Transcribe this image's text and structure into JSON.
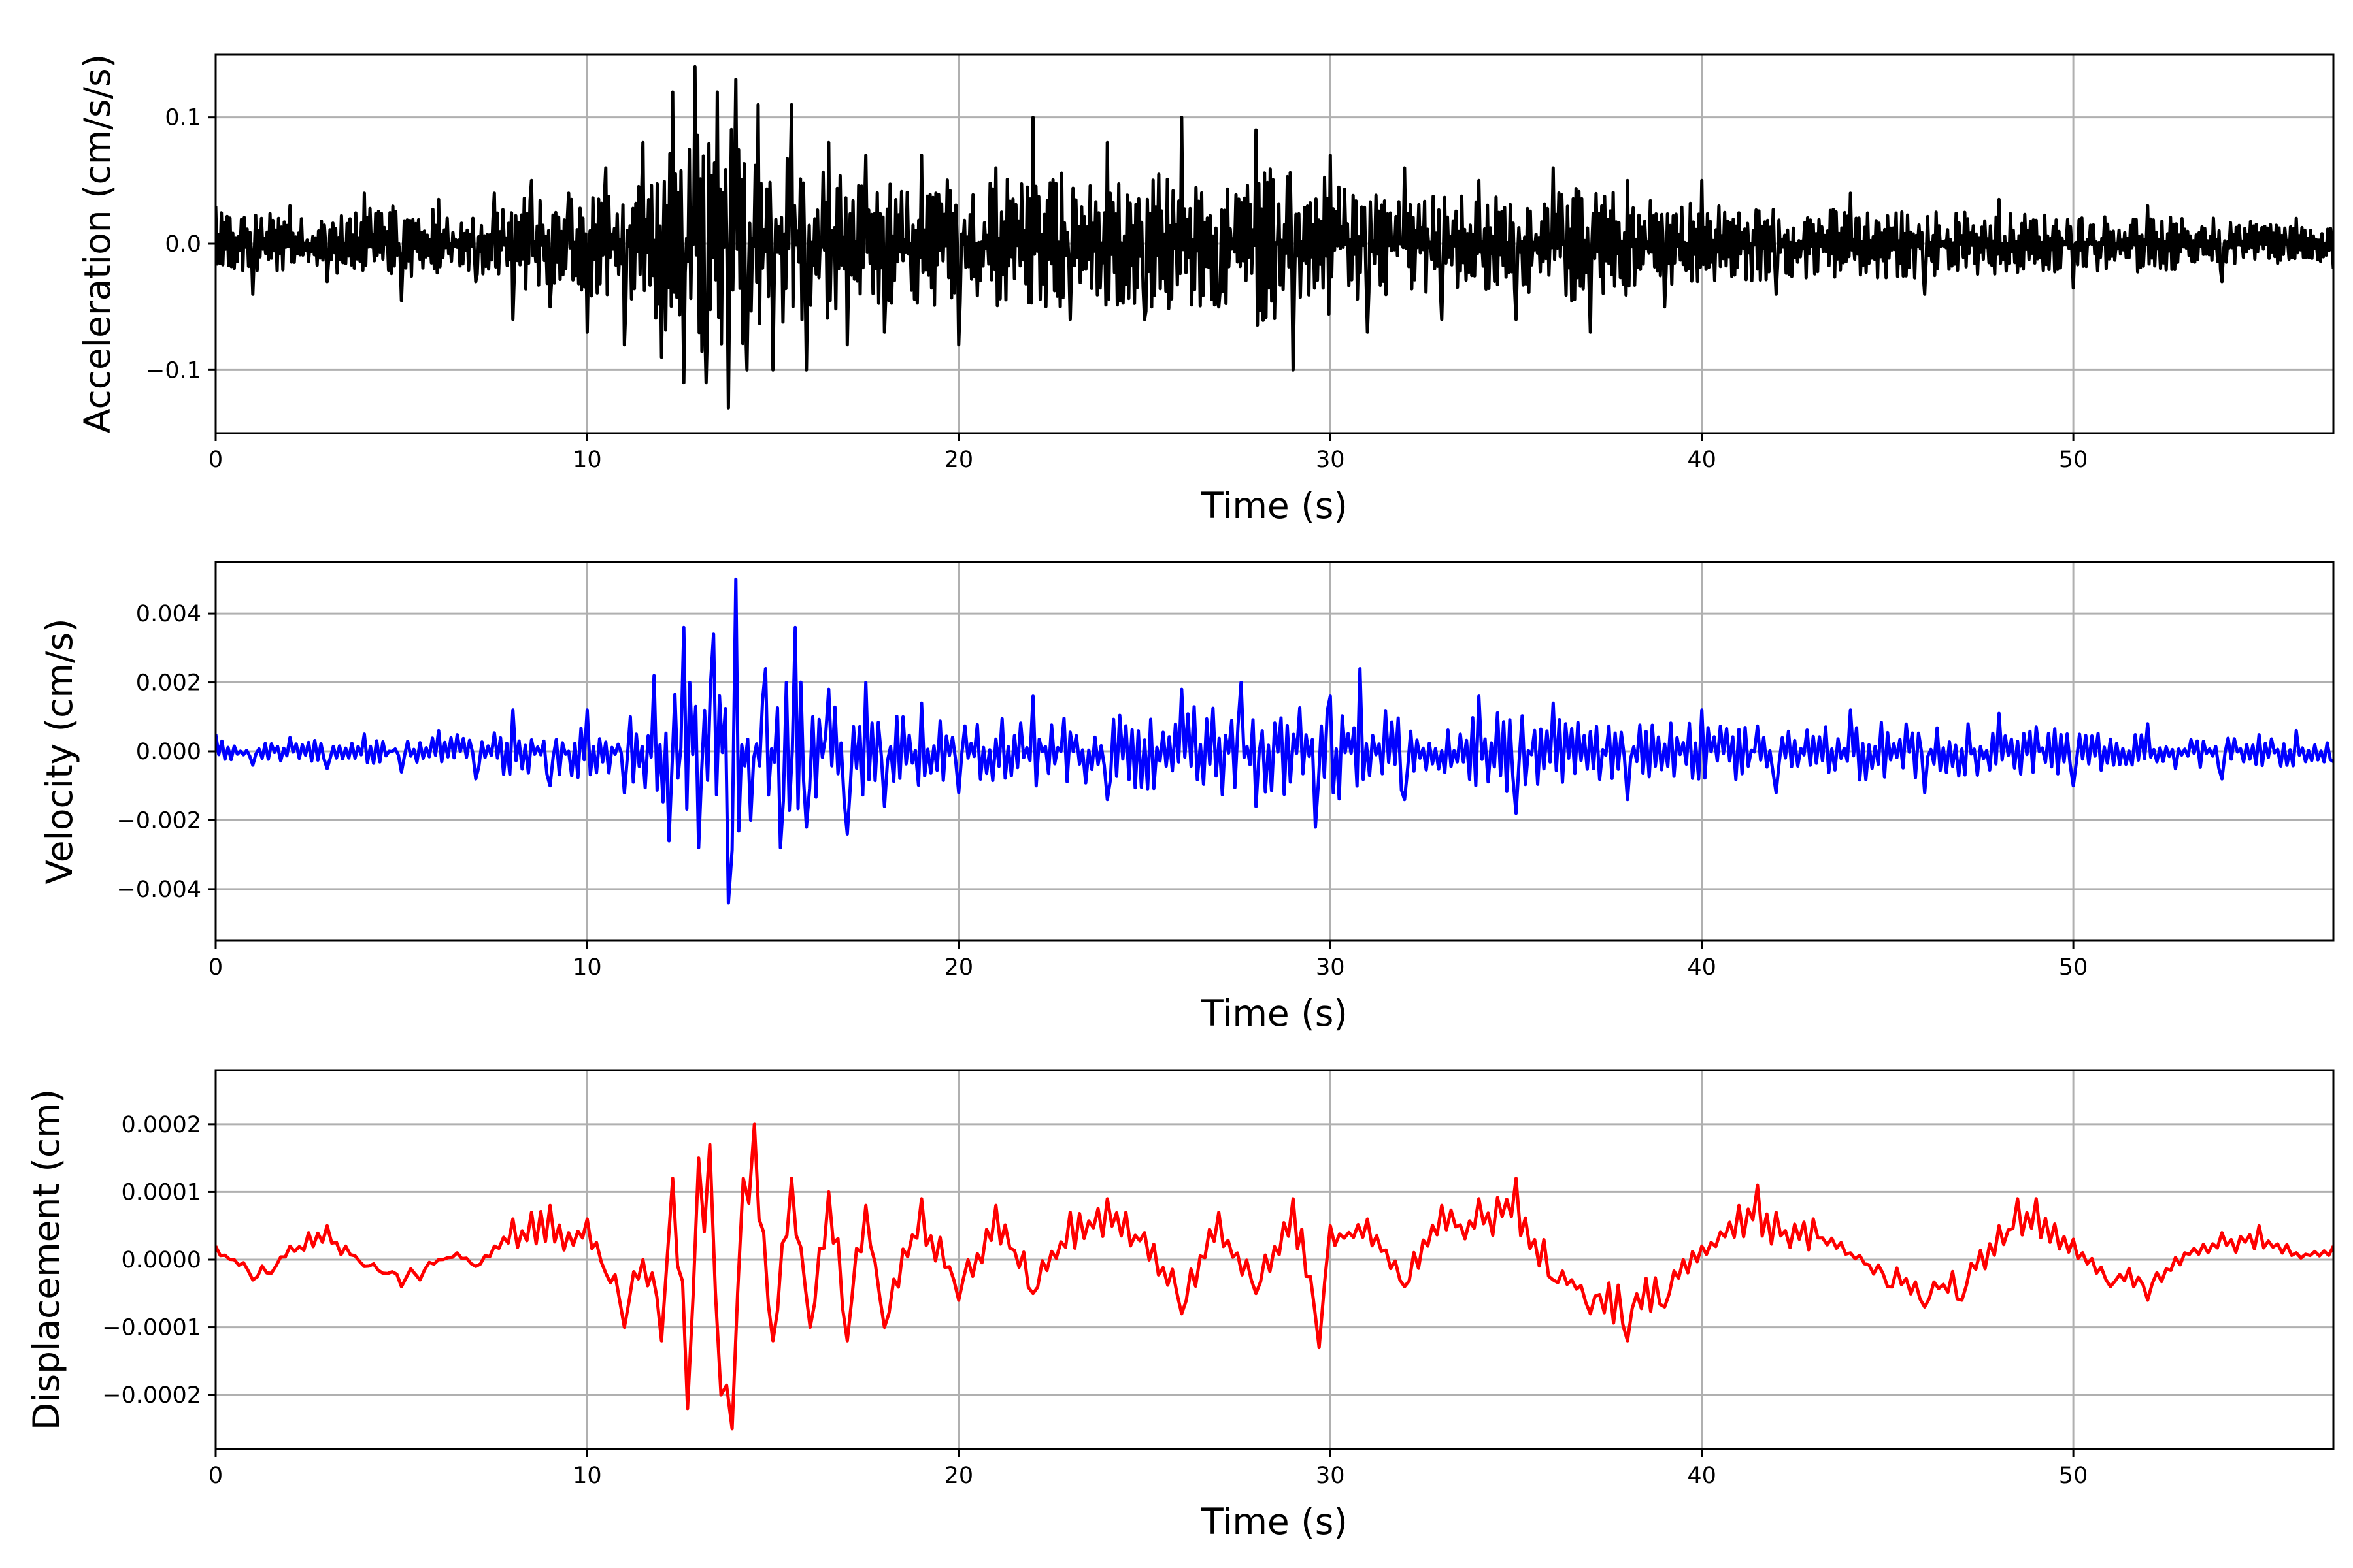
{
  "colors": {
    "acceleration": "#000000",
    "velocity": "#0000ff",
    "displacement": "#ff0000",
    "grid": "#b0b0b0"
  },
  "chart_data": [
    {
      "type": "line",
      "xlabel": "Time (s)",
      "ylabel": "Acceleration (cm/s/s)",
      "xlim": [
        0,
        57
      ],
      "ylim": [
        -0.15,
        0.15
      ],
      "grid": true,
      "xticks": [
        0,
        10,
        20,
        30,
        40,
        50
      ],
      "xtick_labels": [
        "0",
        "10",
        "20",
        "30",
        "40",
        "50"
      ],
      "yticks": [
        -0.1,
        0.0,
        0.1
      ],
      "ytick_labels": [
        "−0.1",
        "0.0",
        "0.1"
      ],
      "series": [
        {
          "color": "#000000",
          "x": [
            0,
            1,
            2,
            3,
            4,
            5,
            6,
            7,
            7.5,
            8,
            8.5,
            9,
            9.5,
            10,
            10.5,
            11,
            11.5,
            12,
            12.3,
            12.6,
            12.9,
            13.2,
            13.5,
            13.8,
            14.0,
            14.3,
            14.6,
            15.0,
            15.5,
            15.9,
            16.5,
            17,
            17.5,
            18,
            19,
            20,
            21,
            22,
            23,
            24,
            25,
            26,
            27,
            28,
            29,
            30,
            31,
            32,
            33,
            34,
            35,
            36,
            37,
            38,
            39,
            40,
            42,
            44,
            46,
            48,
            50,
            52,
            54,
            56,
            57
          ],
          "y": [
            0.03,
            -0.04,
            0.03,
            -0.03,
            0.04,
            -0.045,
            0.035,
            -0.03,
            0.04,
            -0.06,
            0.05,
            -0.05,
            0.04,
            -0.07,
            0.06,
            -0.08,
            0.08,
            -0.09,
            0.12,
            -0.11,
            0.14,
            -0.11,
            0.12,
            -0.13,
            0.13,
            -0.1,
            0.11,
            -0.1,
            0.11,
            -0.1,
            0.08,
            -0.08,
            0.07,
            -0.07,
            0.07,
            -0.08,
            0.06,
            0.1,
            -0.06,
            0.08,
            -0.06,
            0.1,
            -0.05,
            0.09,
            -0.1,
            0.07,
            -0.07,
            0.06,
            -0.06,
            0.05,
            -0.06,
            0.06,
            -0.07,
            0.05,
            -0.05,
            0.05,
            -0.04,
            0.04,
            -0.04,
            0.035,
            -0.035,
            0.03,
            -0.03,
            0.02,
            -0.02
          ]
        }
      ]
    },
    {
      "type": "line",
      "xlabel": "Time (s)",
      "ylabel": "Velocity (cm/s)",
      "xlim": [
        0,
        57
      ],
      "ylim": [
        -0.0055,
        0.0055
      ],
      "grid": true,
      "xticks": [
        0,
        10,
        20,
        30,
        40,
        50
      ],
      "xtick_labels": [
        "0",
        "10",
        "20",
        "30",
        "40",
        "50"
      ],
      "yticks": [
        -0.004,
        -0.002,
        0.0,
        0.002,
        0.004
      ],
      "ytick_labels": [
        "−0.004",
        "−0.002",
        "0.000",
        "0.002",
        "0.004"
      ],
      "series": [
        {
          "color": "#0000ff",
          "x": [
            0,
            1,
            2,
            3,
            4,
            5,
            6,
            7,
            8,
            9,
            10,
            11,
            11.8,
            12.2,
            12.6,
            13.0,
            13.4,
            13.8,
            14.0,
            14.4,
            14.8,
            15.2,
            15.6,
            15.9,
            16.5,
            17,
            17.5,
            18,
            19,
            20,
            22,
            24,
            26,
            27.6,
            28,
            29.6,
            30,
            30.8,
            32,
            34,
            35,
            36,
            38,
            40,
            42,
            44,
            46,
            48,
            50,
            52,
            54,
            56,
            57
          ],
          "y": [
            0.0005,
            -0.0004,
            0.0004,
            -0.0005,
            0.0005,
            -0.0006,
            0.0006,
            -0.0008,
            0.0012,
            -0.001,
            0.0012,
            -0.0012,
            0.0022,
            -0.0026,
            0.0036,
            -0.0028,
            0.0034,
            -0.0044,
            0.005,
            -0.002,
            0.0024,
            -0.0028,
            0.0036,
            -0.0022,
            0.0018,
            -0.0024,
            0.002,
            -0.0016,
            0.0014,
            -0.0012,
            0.0016,
            -0.0014,
            0.0018,
            0.002,
            -0.0016,
            -0.0022,
            0.0016,
            0.0024,
            -0.0014,
            0.0016,
            -0.0018,
            0.0014,
            -0.0014,
            0.0012,
            -0.0012,
            0.0012,
            -0.0012,
            0.0011,
            -0.001,
            0.0008,
            -0.0008,
            0.0006,
            -0.0003
          ]
        }
      ]
    },
    {
      "type": "line",
      "xlabel": "Time (s)",
      "ylabel": "Displacement (cm)",
      "xlim": [
        0,
        57
      ],
      "ylim": [
        -0.00028,
        0.00028
      ],
      "grid": true,
      "xticks": [
        0,
        10,
        20,
        30,
        40,
        50
      ],
      "xtick_labels": [
        "0",
        "10",
        "20",
        "30",
        "40",
        "50"
      ],
      "yticks": [
        -0.0002,
        -0.0001,
        0.0,
        0.0001,
        0.0002
      ],
      "ytick_labels": [
        "−0.0002",
        "−0.0001",
        "0.0000",
        "0.0001",
        "0.0002"
      ],
      "series": [
        {
          "color": "#ff0000",
          "x": [
            0,
            0.5,
            1,
            1.5,
            2,
            2.5,
            3,
            3.5,
            4,
            4.5,
            5,
            5.5,
            6,
            6.5,
            7,
            7.5,
            8,
            8.5,
            9,
            9.5,
            10,
            10.5,
            11,
            11.5,
            12,
            12.3,
            12.7,
            13.0,
            13.3,
            13.6,
            13.9,
            14.2,
            14.5,
            15,
            15.5,
            16,
            16.5,
            17,
            17.5,
            18,
            19,
            20,
            21,
            22,
            23,
            24,
            24.5,
            25,
            26,
            27,
            28,
            29,
            29.7,
            30,
            31,
            32,
            33,
            34,
            35,
            36,
            37,
            38,
            39,
            40,
            41,
            41.5,
            42,
            43,
            44,
            45,
            46,
            47,
            48,
            48.5,
            49,
            50,
            51,
            52,
            53,
            54,
            55,
            56,
            57
          ],
          "y": [
            2e-05,
            0,
            -3e-05,
            -2e-05,
            2e-05,
            4e-05,
            5e-05,
            2e-05,
            -1e-05,
            -2e-05,
            -4e-05,
            -3e-05,
            0,
            1e-05,
            -1e-05,
            2e-05,
            6e-05,
            7e-05,
            8e-05,
            4e-05,
            6e-05,
            -2e-05,
            -0.0001,
            0,
            -0.00012,
            0.00012,
            -0.00022,
            0.00015,
            0.00017,
            -0.0002,
            -0.00025,
            0.00012,
            0.0002,
            -0.00012,
            0.00012,
            -0.0001,
            0.0001,
            -0.00012,
            8e-05,
            -0.0001,
            9e-05,
            -6e-05,
            8e-05,
            -5e-05,
            7e-05,
            9e-05,
            7e-05,
            4e-05,
            -8e-05,
            7e-05,
            -5e-05,
            9e-05,
            -0.00013,
            5e-05,
            6e-05,
            -4e-05,
            8e-05,
            9e-05,
            0.00012,
            -3e-05,
            -8e-05,
            -0.00012,
            -7e-05,
            2e-05,
            8e-05,
            0.00011,
            7e-05,
            6e-05,
            1e-05,
            -4e-05,
            -7e-05,
            -6e-05,
            5e-05,
            9e-05,
            9e-05,
            3e-05,
            -4e-05,
            -6e-05,
            1e-05,
            4e-05,
            5e-05,
            1e-05,
            2e-05
          ]
        }
      ]
    }
  ]
}
